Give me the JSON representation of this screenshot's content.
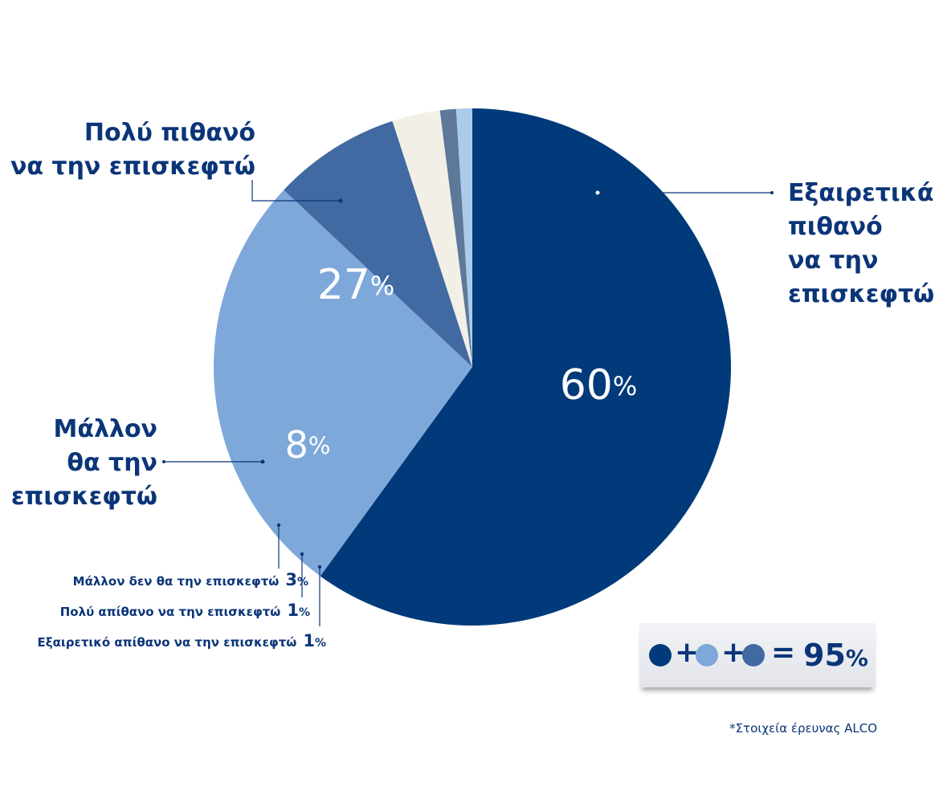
{
  "chart_data": {
    "type": "pie",
    "title": "",
    "slices": [
      {
        "label": "Εξαιρετικά πιθανό να την επισκεφτώ",
        "value": 60,
        "display": "60",
        "color": "#003a7a"
      },
      {
        "label": "Πολύ πιθανό να την επισκεφτώ",
        "value": 27,
        "display": "27",
        "color": "#7ea8da"
      },
      {
        "label": "Μάλλον θα την επισκεφτώ",
        "value": 8,
        "display": "8",
        "color": "#4169a2"
      },
      {
        "label": "Μάλλον δεν θα την επισκεφτώ",
        "value": 3,
        "display": "3",
        "color": "#f2efe6"
      },
      {
        "label": "Πολύ απίθανο να την επισκεφτώ",
        "value": 1,
        "display": "1",
        "color": "#5d7899"
      },
      {
        "label": "Εξαιρετικό απίθανο να την επισκεφτώ",
        "value": 1,
        "display": "1",
        "color": "#aacbeb"
      }
    ],
    "percent_symbol": "%",
    "legend_lines": {
      "slice0": [
        "Εξαιρετικά",
        "πιθανό",
        "να την",
        "επισκεφτώ"
      ],
      "slice1": [
        "Πολύ πιθανό",
        "να την επισκεφτώ"
      ],
      "slice2": [
        "Μάλλον",
        "θα την",
        "επισκεφτώ"
      ]
    }
  },
  "summary": {
    "plus": "+",
    "equals": "=",
    "total": "95",
    "percent_symbol": "%"
  },
  "footnote": "*Στοιχεία έρευνας ALCO"
}
